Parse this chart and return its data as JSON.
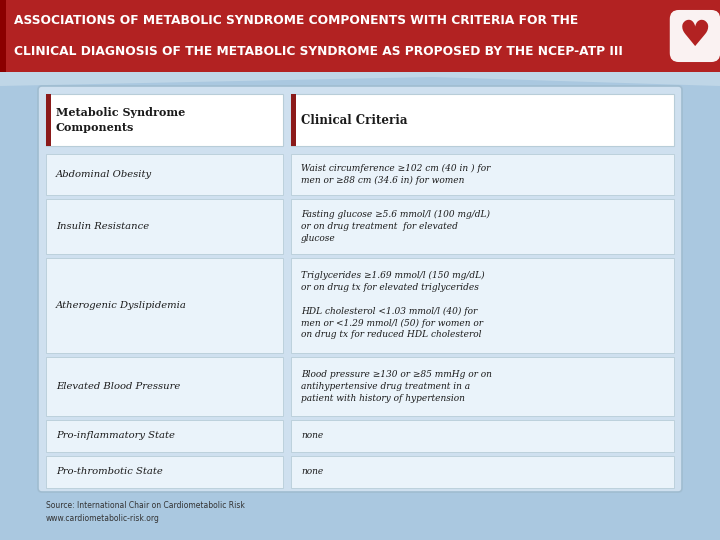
{
  "title_line1": "ASSOCIATIONS OF METABOLIC SYNDROME COMPONENTS WITH CRITERIA FOR THE",
  "title_line2": "CLINICAL DIAGNOSIS OF THE METABOLIC SYNDROME AS PROPOSED BY THE NCEP-ATP III",
  "title_bg": "#b22222",
  "title_text_color": "#ffffff",
  "bg_color": "#aac8e0",
  "table_outer_bg": "#cfe0ef",
  "cell_bg": "#eaf3fa",
  "header_cell_bg": "#ffffff",
  "header_accent": "#8b1a1a",
  "header_left": "Metabolic Syndrome\nComponents",
  "header_right": "Clinical Criteria",
  "rows": [
    {
      "left": "Abdominal Obesity",
      "right": "Waist circumference ≥102 cm (40 in ) for\nmen or ≥88 cm (34.6 in) for women"
    },
    {
      "left": "Insulin Resistance",
      "right": "Fasting glucose ≥5.6 mmol/l (100 mg/dL)\nor on drug treatment  for elevated\nglucose"
    },
    {
      "left": "Atherogenic Dyslipidemia",
      "right": "Triglycerides ≥1.69 mmol/l (150 mg/dL)\nor on drug tx for elevated triglycerides\n\nHDL cholesterol <1.03 mmol/l (40) for\nmen or <1.29 mmol/l (50) for women or\non drug tx for reduced HDL cholesterol"
    },
    {
      "left": "Elevated Blood Pressure",
      "right": "Blood pressure ≥130 or ≥85 mmHg or on\nantihypertensive drug treatment in a\npatient with history of hypertension"
    },
    {
      "left": "Pro-inflammatory State",
      "right": "none"
    },
    {
      "left": "Pro-thrombotic State",
      "right": "none"
    }
  ],
  "source_text": "Source: International Chair on Cardiometabolic Risk\nwww.cardiometabolic-risk.org",
  "heart_color": "#b22222",
  "row_heights_raw": [
    1.0,
    1.3,
    2.2,
    1.4,
    0.8,
    0.8
  ]
}
